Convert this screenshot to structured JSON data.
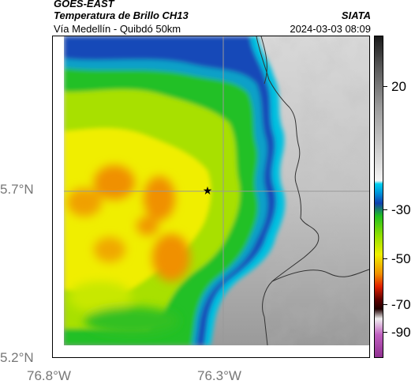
{
  "header": {
    "satellite": "GOES-EAST",
    "product": "Temperatura de Brillo CH13",
    "route": "Vía Medellín - Quibdó 50km",
    "brand": "SIATA",
    "timestamp": "2024-03-03 08:09"
  },
  "axes": {
    "lat_labels": [
      "5.7°N",
      "5.2°N"
    ],
    "lon_labels": [
      "76.8°W",
      "76.3°W"
    ]
  },
  "colorbar": {
    "labels": [
      "20",
      "-30",
      "-50",
      "-70",
      "-90"
    ],
    "colors": {
      "warm_dark": "#222222",
      "warm_light": "#f2f2f2",
      "cyan": "#00c8e8",
      "blue": "#1040b0",
      "green": "#20c020",
      "lime": "#b8e800",
      "yellow": "#f0f000",
      "orange": "#f08000",
      "red": "#d81000",
      "darkred": "#400000",
      "magenta": "#c050b0"
    }
  },
  "map": {
    "marker": "star-icon"
  }
}
